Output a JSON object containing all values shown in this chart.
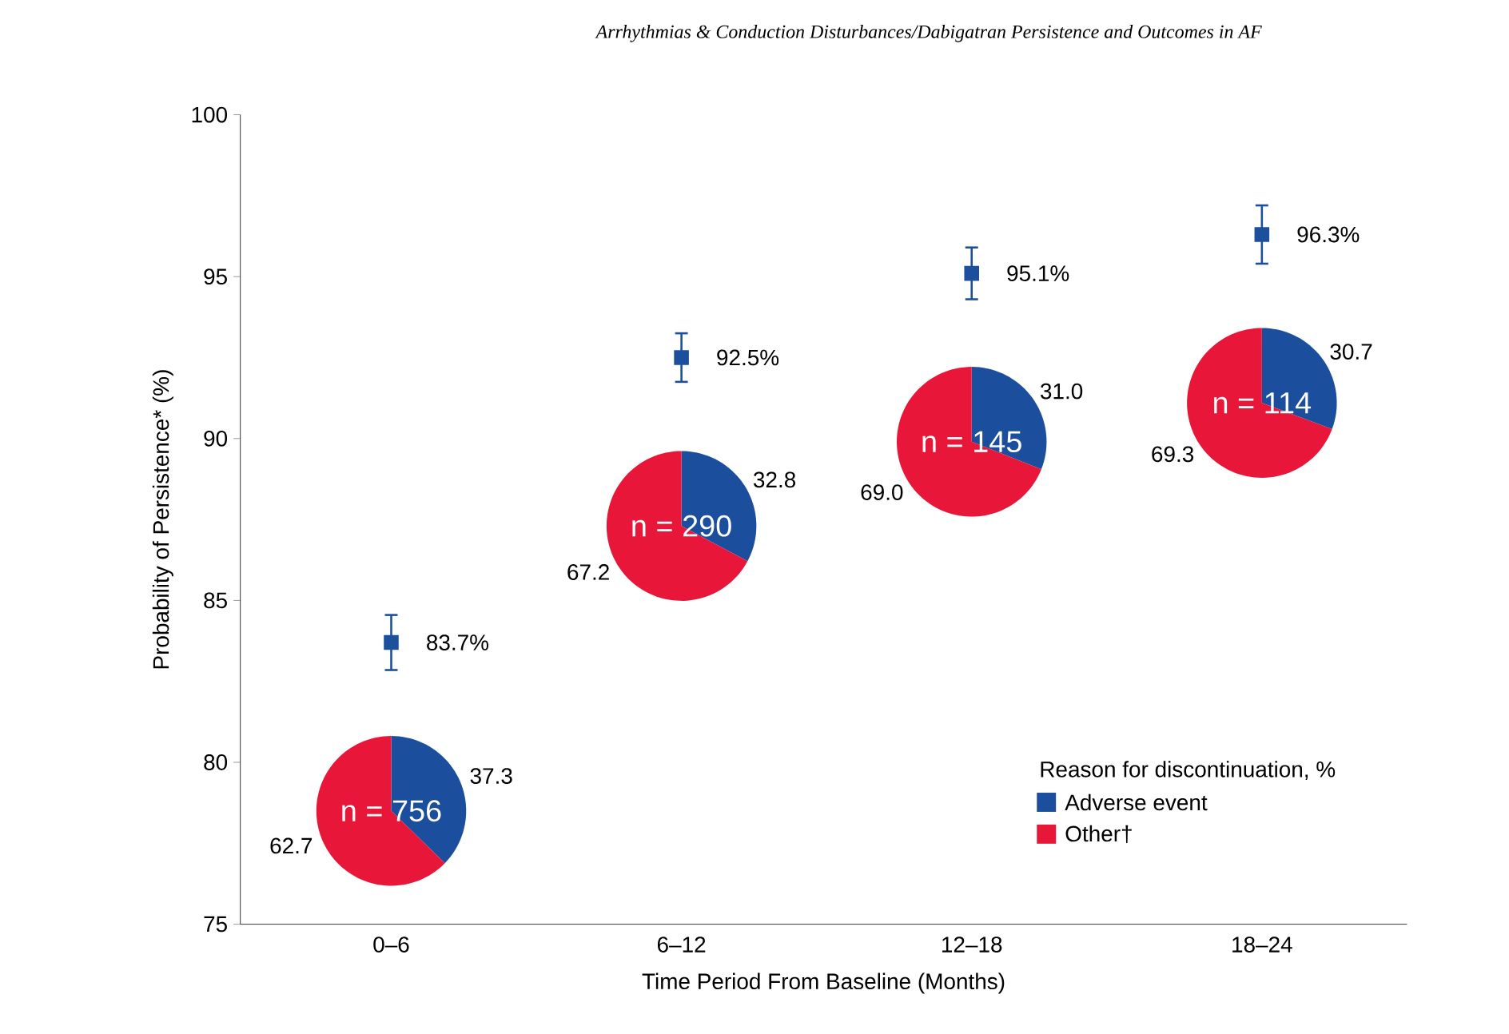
{
  "chart_data": [
    {
      "type": "scatter",
      "title": "Arrhythmias & Conduction Disturbances/Dabigatran Persistence and Outcomes in AF",
      "xlabel": "Time Period From Baseline (Months)",
      "ylabel": "Probability of Persistence* (%)",
      "categories": [
        "0–6",
        "6–12",
        "12–18",
        "18–24"
      ],
      "values": [
        83.7,
        92.5,
        95.1,
        96.3
      ],
      "errors": [
        0.85,
        0.75,
        0.8,
        0.9
      ],
      "value_labels": [
        "83.7%",
        "92.5%",
        "95.1%",
        "96.3%"
      ],
      "color": "#1c4f9c",
      "marker": "square",
      "ylim": [
        75,
        100
      ],
      "yticks": [
        75,
        80,
        85,
        90,
        95,
        100
      ]
    },
    {
      "type": "pie",
      "title": "n = 756",
      "categories": [
        "Adverse event",
        "Other†"
      ],
      "values": [
        37.3,
        62.7
      ],
      "colors": [
        "#1b4f9e",
        "#e8173a"
      ],
      "data_labels": true,
      "legend": "bottom right",
      "legend_title": "Reason for discontinuation, %"
    },
    {
      "type": "pie",
      "title": "n = 290",
      "categories": [
        null,
        null
      ],
      "values": [
        32.8,
        67.2
      ],
      "colors": [
        "#1b4f9e",
        "#e8173a"
      ],
      "data_labels": true
    },
    {
      "type": "pie",
      "title": "n = 145",
      "categories": [
        null,
        null
      ],
      "values": [
        31.0,
        69.0
      ],
      "value_labels": [
        "31.0",
        "69.0"
      ],
      "colors": [
        "#1b4f9e",
        "#e8173a"
      ]
    },
    {
      "type": "pie",
      "title": "n = 114",
      "categories": [
        null,
        null
      ],
      "values": [
        30.7,
        69.3
      ],
      "colors": [
        "#1b4f9e",
        "#e8173a"
      ],
      "data_labels": true
    }
  ]
}
